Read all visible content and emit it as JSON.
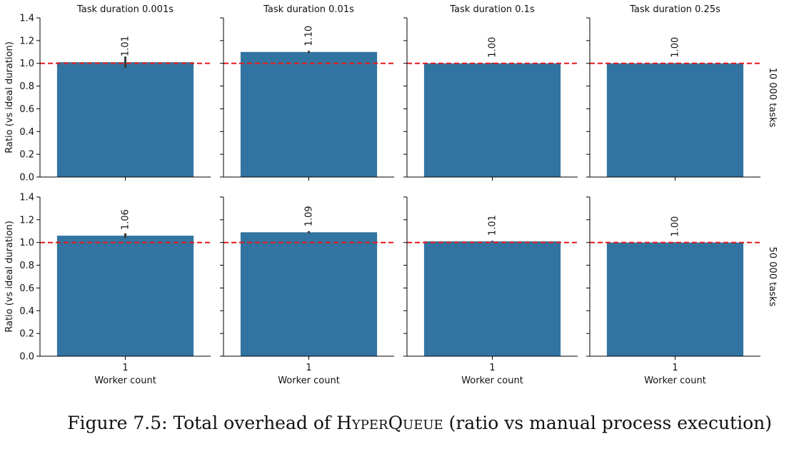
{
  "caption": {
    "prefix": "Figure 7.5: Total overhead of ",
    "name": "HyperQueue",
    "suffix": " (ratio vs manual process execution)"
  },
  "chart_data": {
    "type": "bar",
    "xlabel": "Worker count",
    "ylabel": "Ratio (vs ideal duration)",
    "categories": [
      "1"
    ],
    "ylim": [
      0,
      1.4
    ],
    "yticks": [
      "0.0",
      "0.2",
      "0.4",
      "0.6",
      "0.8",
      "1.0",
      "1.2",
      "1.4"
    ],
    "reference_line": 1.0,
    "reference_color": "#e41a1c",
    "bar_color": "#3274a1",
    "grid": false,
    "columns": [
      "Task duration 0.001s",
      "Task duration 0.01s",
      "Task duration 0.1s",
      "Task duration 0.25s"
    ],
    "rows": [
      "10 000 tasks",
      "50 000 tasks"
    ],
    "panels": [
      {
        "row": 0,
        "col": 0,
        "value": 1.01,
        "label": "1.01",
        "err": [
          0.96,
          1.06
        ]
      },
      {
        "row": 0,
        "col": 1,
        "value": 1.1,
        "label": "1.10",
        "err": [
          1.09,
          1.11
        ]
      },
      {
        "row": 0,
        "col": 2,
        "value": 1.0,
        "label": "1.00",
        "err": [
          0.995,
          1.005
        ]
      },
      {
        "row": 0,
        "col": 3,
        "value": 1.0,
        "label": "1.00",
        "err": [
          0.998,
          1.002
        ]
      },
      {
        "row": 1,
        "col": 0,
        "value": 1.06,
        "label": "1.06",
        "err": [
          1.04,
          1.08
        ]
      },
      {
        "row": 1,
        "col": 1,
        "value": 1.09,
        "label": "1.09",
        "err": [
          1.08,
          1.1
        ]
      },
      {
        "row": 1,
        "col": 2,
        "value": 1.01,
        "label": "1.01",
        "err": [
          1.005,
          1.015
        ]
      },
      {
        "row": 1,
        "col": 3,
        "value": 1.0,
        "label": "1.00",
        "err": [
          0.998,
          1.002
        ]
      }
    ]
  }
}
